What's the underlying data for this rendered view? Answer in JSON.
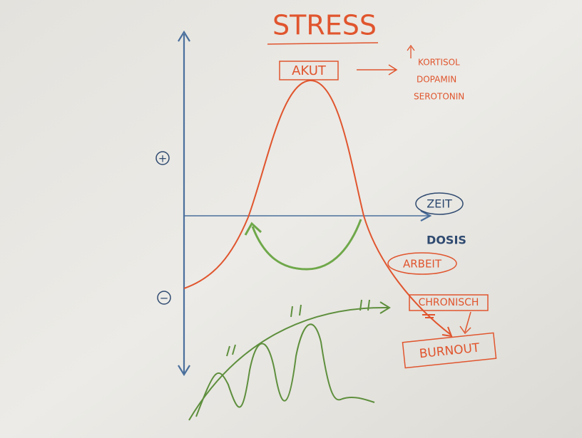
{
  "title": "STRESS",
  "akut": {
    "label": "AKUT",
    "effects": [
      "KORTISOL",
      "DOPAMIN",
      "SEROTONIN"
    ]
  },
  "axis": {
    "positive": "+",
    "negative": "−",
    "x_label": "ZEIT",
    "x_label_2": "DOSIS"
  },
  "nodes": [
    {
      "label": "ARBEIT"
    },
    {
      "label": "CHRONISCH"
    },
    {
      "label": "BURNOUT"
    }
  ]
}
